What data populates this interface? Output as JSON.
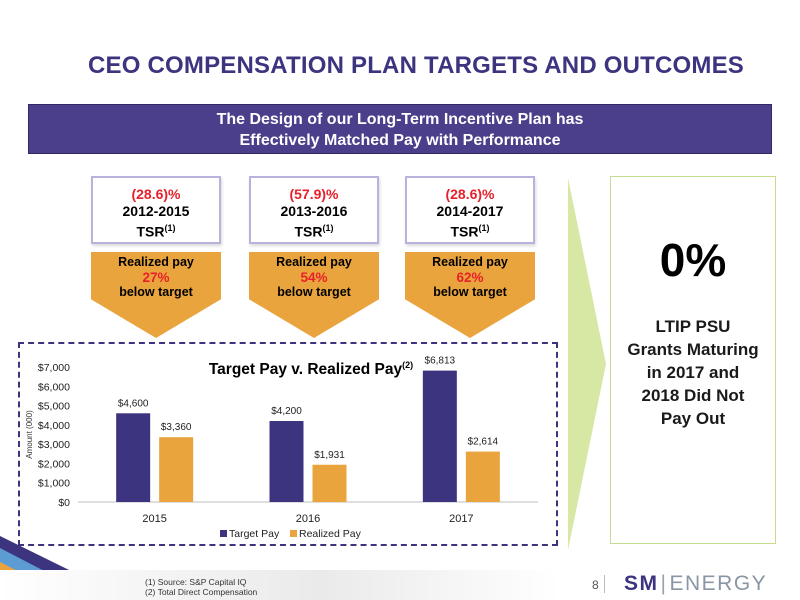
{
  "title": "CEO COMPENSATION PLAN TARGETS AND OUTCOMES",
  "banner": {
    "line1": "The Design of our Long-Term Incentive Plan has",
    "line2": "Effectively Matched Pay with Performance"
  },
  "periods": [
    {
      "tsr": "(28.6)%",
      "years": "2012-2015",
      "tsr_label": "TSR",
      "note_ref": "(1)",
      "realized_label": "Realized pay",
      "pct": "27%",
      "below": "below target"
    },
    {
      "tsr": "(57.9)%",
      "years": "2013-2016",
      "tsr_label": "TSR",
      "note_ref": "(1)",
      "realized_label": "Realized pay",
      "pct": "54%",
      "below": "below target"
    },
    {
      "tsr": "(28.6)%",
      "years": "2014-2017",
      "tsr_label": "TSR",
      "note_ref": "(1)",
      "realized_label": "Realized pay",
      "pct": "62%",
      "below": "below target"
    }
  ],
  "outcome": {
    "big": "0%",
    "lines": [
      "LTIP PSU",
      "Grants Maturing",
      "in 2017 and",
      "2018 Did Not",
      "Pay Out"
    ]
  },
  "chart_data": {
    "type": "bar",
    "title": "Target Pay v. Realized Pay",
    "title_ref": "(2)",
    "ylabel": "Amount (000)",
    "xlabel": "",
    "categories": [
      "2015",
      "2016",
      "2017"
    ],
    "series": [
      {
        "name": "Target Pay",
        "values": [
          4600,
          4200,
          6813
        ],
        "labels": [
          "$4,600",
          "$4,200",
          "$6,813"
        ],
        "color": "#3d3480"
      },
      {
        "name": "Realized Pay",
        "values": [
          3360,
          1931,
          2614
        ],
        "labels": [
          "$3,360",
          "$1,931",
          "$2,614"
        ],
        "color": "#e9a43d"
      }
    ],
    "ylim": [
      0,
      7000
    ],
    "yticks": [
      0,
      1000,
      2000,
      3000,
      4000,
      5000,
      6000,
      7000
    ],
    "ytick_labels": [
      "$0",
      "$1,000",
      "$2,000",
      "$3,000",
      "$4,000",
      "$5,000",
      "$6,000",
      "$7,000"
    ],
    "grid": false,
    "legend": "bottom"
  },
  "footnotes": [
    "(1)    Source: S&P Capital IQ",
    "(2)    Total Direct Compensation"
  ],
  "page_number": "8",
  "logo": {
    "part1": "SM",
    "part2": "ENERGY"
  },
  "colors": {
    "brand_purple": "#3d3480",
    "accent_orange": "#e9a43d",
    "negative_red": "#e8202a",
    "chevron_green": "#d6e8a4"
  }
}
